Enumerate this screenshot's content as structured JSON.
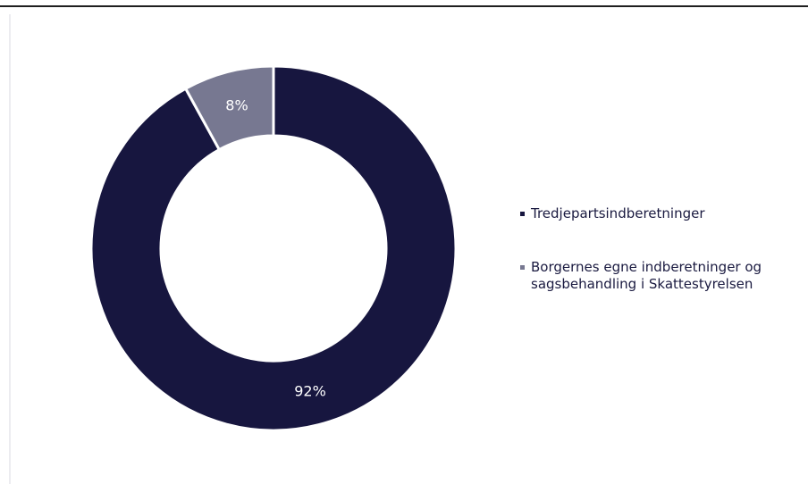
{
  "chart_data": {
    "type": "pie",
    "donut": true,
    "categories": [
      "Tredjepartsindberetninger",
      "Borgernes egne indberetninger og sagsbehandling i Skattestyrelsen"
    ],
    "values": [
      92,
      8
    ],
    "data_labels": [
      "92%",
      "8%"
    ],
    "colors": [
      "#17163f",
      "#777891"
    ],
    "legend_position": "right"
  }
}
